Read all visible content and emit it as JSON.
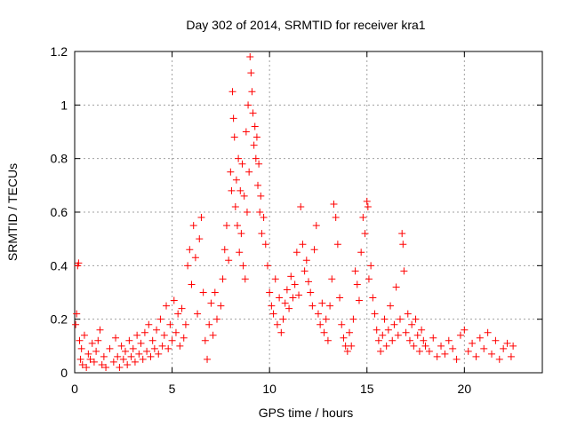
{
  "chart_data": {
    "type": "scatter",
    "title": "Day 302 of 2014, SRMTID for receiver kra1",
    "xlabel": "GPS time / hours",
    "ylabel": "SRMTID / TECUs",
    "xlim": [
      0,
      24
    ],
    "ylim": [
      0,
      1.2
    ],
    "xticks": [
      0,
      5,
      10,
      15,
      20
    ],
    "yticks": [
      0,
      0.2,
      0.4,
      0.6,
      0.8,
      1,
      1.2
    ],
    "xtick_labels": [
      "0",
      "5",
      "10",
      "15",
      "20"
    ],
    "ytick_labels": [
      "0",
      "0.2",
      "0.4",
      "0.6",
      "0.8",
      "1",
      "1.2"
    ],
    "grid": true,
    "marker": "+",
    "color": "#ff0000",
    "series": [
      {
        "name": "SRMTID",
        "points": [
          [
            0.05,
            0.18
          ],
          [
            0.1,
            0.22
          ],
          [
            0.15,
            0.4
          ],
          [
            0.2,
            0.41
          ],
          [
            0.25,
            0.12
          ],
          [
            0.3,
            0.05
          ],
          [
            0.35,
            0.09
          ],
          [
            0.4,
            0.03
          ],
          [
            0.5,
            0.14
          ],
          [
            0.6,
            0.02
          ],
          [
            0.7,
            0.07
          ],
          [
            0.8,
            0.05
          ],
          [
            0.9,
            0.11
          ],
          [
            1.0,
            0.04
          ],
          [
            1.1,
            0.08
          ],
          [
            1.2,
            0.12
          ],
          [
            1.3,
            0.16
          ],
          [
            1.4,
            0.03
          ],
          [
            1.5,
            0.06
          ],
          [
            1.6,
            0.02
          ],
          [
            1.8,
            0.09
          ],
          [
            2.0,
            0.04
          ],
          [
            2.1,
            0.13
          ],
          [
            2.2,
            0.06
          ],
          [
            2.3,
            0.02
          ],
          [
            2.4,
            0.1
          ],
          [
            2.5,
            0.05
          ],
          [
            2.6,
            0.08
          ],
          [
            2.7,
            0.03
          ],
          [
            2.8,
            0.12
          ],
          [
            2.9,
            0.06
          ],
          [
            3.0,
            0.09
          ],
          [
            3.1,
            0.04
          ],
          [
            3.2,
            0.14
          ],
          [
            3.3,
            0.07
          ],
          [
            3.4,
            0.11
          ],
          [
            3.5,
            0.05
          ],
          [
            3.6,
            0.15
          ],
          [
            3.7,
            0.08
          ],
          [
            3.8,
            0.18
          ],
          [
            3.9,
            0.06
          ],
          [
            4.0,
            0.12
          ],
          [
            4.1,
            0.09
          ],
          [
            4.2,
            0.16
          ],
          [
            4.3,
            0.07
          ],
          [
            4.4,
            0.2
          ],
          [
            4.5,
            0.1
          ],
          [
            4.6,
            0.14
          ],
          [
            4.7,
            0.25
          ],
          [
            4.8,
            0.09
          ],
          [
            4.9,
            0.18
          ],
          [
            5.0,
            0.12
          ],
          [
            5.1,
            0.27
          ],
          [
            5.2,
            0.15
          ],
          [
            5.3,
            0.22
          ],
          [
            5.4,
            0.1
          ],
          [
            5.5,
            0.24
          ],
          [
            5.6,
            0.13
          ],
          [
            5.7,
            0.18
          ],
          [
            5.8,
            0.4
          ],
          [
            5.9,
            0.46
          ],
          [
            6.0,
            0.33
          ],
          [
            6.1,
            0.55
          ],
          [
            6.2,
            0.43
          ],
          [
            6.3,
            0.22
          ],
          [
            6.4,
            0.5
          ],
          [
            6.5,
            0.58
          ],
          [
            6.6,
            0.3
          ],
          [
            6.7,
            0.12
          ],
          [
            6.8,
            0.05
          ],
          [
            6.9,
            0.18
          ],
          [
            7.0,
            0.26
          ],
          [
            7.1,
            0.14
          ],
          [
            7.2,
            0.3
          ],
          [
            7.3,
            0.2
          ],
          [
            7.5,
            0.25
          ],
          [
            7.6,
            0.35
          ],
          [
            7.7,
            0.46
          ],
          [
            7.8,
            0.55
          ],
          [
            7.9,
            0.42
          ],
          [
            8.0,
            0.75
          ],
          [
            8.05,
            0.68
          ],
          [
            8.1,
            1.05
          ],
          [
            8.15,
            0.95
          ],
          [
            8.2,
            0.88
          ],
          [
            8.25,
            0.62
          ],
          [
            8.3,
            0.72
          ],
          [
            8.35,
            0.55
          ],
          [
            8.4,
            0.8
          ],
          [
            8.45,
            0.45
          ],
          [
            8.5,
            0.68
          ],
          [
            8.55,
            0.52
          ],
          [
            8.6,
            0.78
          ],
          [
            8.65,
            0.4
          ],
          [
            8.7,
            0.66
          ],
          [
            8.75,
            0.35
          ],
          [
            8.8,
            0.9
          ],
          [
            8.85,
            0.6
          ],
          [
            8.9,
            1.0
          ],
          [
            8.95,
            0.75
          ],
          [
            9.0,
            1.18
          ],
          [
            9.05,
            1.12
          ],
          [
            9.1,
            1.05
          ],
          [
            9.15,
            0.97
          ],
          [
            9.2,
            0.85
          ],
          [
            9.25,
            0.92
          ],
          [
            9.3,
            0.8
          ],
          [
            9.35,
            0.88
          ],
          [
            9.4,
            0.7
          ],
          [
            9.45,
            0.78
          ],
          [
            9.5,
            0.6
          ],
          [
            9.55,
            0.66
          ],
          [
            9.6,
            0.52
          ],
          [
            9.7,
            0.58
          ],
          [
            9.8,
            0.48
          ],
          [
            9.9,
            0.4
          ],
          [
            10.0,
            0.3
          ],
          [
            10.1,
            0.25
          ],
          [
            10.2,
            0.22
          ],
          [
            10.3,
            0.35
          ],
          [
            10.4,
            0.18
          ],
          [
            10.5,
            0.28
          ],
          [
            10.6,
            0.15
          ],
          [
            10.7,
            0.2
          ],
          [
            10.8,
            0.26
          ],
          [
            10.9,
            0.31
          ],
          [
            11.0,
            0.24
          ],
          [
            11.1,
            0.36
          ],
          [
            11.2,
            0.28
          ],
          [
            11.3,
            0.33
          ],
          [
            11.4,
            0.45
          ],
          [
            11.5,
            0.29
          ],
          [
            11.6,
            0.62
          ],
          [
            11.7,
            0.48
          ],
          [
            11.8,
            0.38
          ],
          [
            11.9,
            0.42
          ],
          [
            12.0,
            0.34
          ],
          [
            12.1,
            0.3
          ],
          [
            12.2,
            0.25
          ],
          [
            12.3,
            0.46
          ],
          [
            12.4,
            0.55
          ],
          [
            12.5,
            0.22
          ],
          [
            12.6,
            0.18
          ],
          [
            12.7,
            0.26
          ],
          [
            12.8,
            0.15
          ],
          [
            12.9,
            0.2
          ],
          [
            13.0,
            0.12
          ],
          [
            13.1,
            0.25
          ],
          [
            13.2,
            0.35
          ],
          [
            13.3,
            0.63
          ],
          [
            13.4,
            0.58
          ],
          [
            13.5,
            0.48
          ],
          [
            13.6,
            0.28
          ],
          [
            13.7,
            0.18
          ],
          [
            13.8,
            0.13
          ],
          [
            13.9,
            0.1
          ],
          [
            14.0,
            0.08
          ],
          [
            14.1,
            0.15
          ],
          [
            14.2,
            0.1
          ],
          [
            14.3,
            0.2
          ],
          [
            14.4,
            0.38
          ],
          [
            14.5,
            0.33
          ],
          [
            14.6,
            0.27
          ],
          [
            14.7,
            0.45
          ],
          [
            14.8,
            0.58
          ],
          [
            14.9,
            0.52
          ],
          [
            15.0,
            0.64
          ],
          [
            15.05,
            0.62
          ],
          [
            15.1,
            0.35
          ],
          [
            15.2,
            0.4
          ],
          [
            15.3,
            0.28
          ],
          [
            15.4,
            0.22
          ],
          [
            15.5,
            0.16
          ],
          [
            15.6,
            0.12
          ],
          [
            15.7,
            0.08
          ],
          [
            15.8,
            0.14
          ],
          [
            15.9,
            0.2
          ],
          [
            16.0,
            0.1
          ],
          [
            16.1,
            0.16
          ],
          [
            16.2,
            0.25
          ],
          [
            16.3,
            0.12
          ],
          [
            16.4,
            0.18
          ],
          [
            16.5,
            0.32
          ],
          [
            16.6,
            0.14
          ],
          [
            16.7,
            0.2
          ],
          [
            16.8,
            0.52
          ],
          [
            16.85,
            0.48
          ],
          [
            16.9,
            0.38
          ],
          [
            17.0,
            0.15
          ],
          [
            17.1,
            0.22
          ],
          [
            17.2,
            0.12
          ],
          [
            17.3,
            0.18
          ],
          [
            17.4,
            0.1
          ],
          [
            17.5,
            0.2
          ],
          [
            17.6,
            0.14
          ],
          [
            17.7,
            0.08
          ],
          [
            17.8,
            0.16
          ],
          [
            17.9,
            0.12
          ],
          [
            18.0,
            0.1
          ],
          [
            18.2,
            0.08
          ],
          [
            18.4,
            0.13
          ],
          [
            18.6,
            0.06
          ],
          [
            18.8,
            0.1
          ],
          [
            19.0,
            0.07
          ],
          [
            19.2,
            0.12
          ],
          [
            19.4,
            0.09
          ],
          [
            19.6,
            0.05
          ],
          [
            19.8,
            0.14
          ],
          [
            20.0,
            0.16
          ],
          [
            20.2,
            0.08
          ],
          [
            20.4,
            0.11
          ],
          [
            20.6,
            0.06
          ],
          [
            20.8,
            0.13
          ],
          [
            21.0,
            0.09
          ],
          [
            21.2,
            0.15
          ],
          [
            21.4,
            0.07
          ],
          [
            21.6,
            0.12
          ],
          [
            21.8,
            0.05
          ],
          [
            22.0,
            0.09
          ],
          [
            22.2,
            0.11
          ],
          [
            22.4,
            0.06
          ],
          [
            22.5,
            0.1
          ]
        ]
      }
    ]
  }
}
